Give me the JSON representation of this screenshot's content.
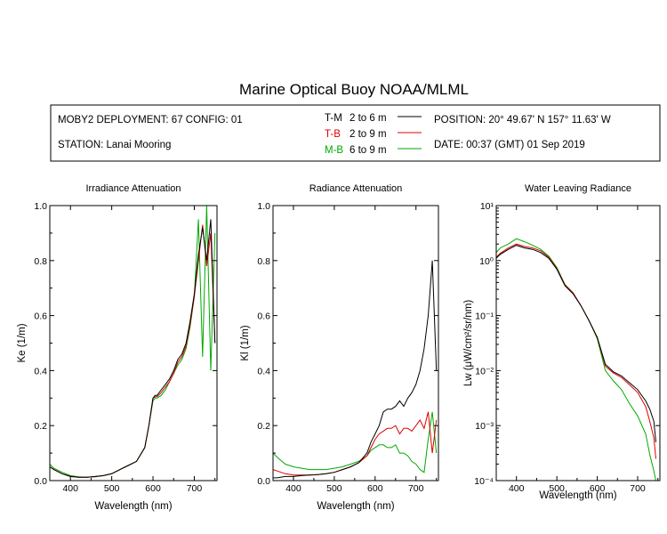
{
  "title": "Marine Optical Buoy NOAA/MLML",
  "info": {
    "deployment": "MOBY2 DEPLOYMENT: 67 CONFIG: 01",
    "station": "STATION: Lanai Mooring",
    "position": "POSITION: 20° 49.67' N   157° 11.63' W",
    "date": "DATE: 00:37 (GMT) 01 Sep 2019"
  },
  "legend": [
    {
      "code": "T-M",
      "range": "2 to 6  m",
      "color": "#000000"
    },
    {
      "code": "T-B",
      "range": "2 to 9  m",
      "color": "#dd0000"
    },
    {
      "code": "M-B",
      "range": "6 to 9  m",
      "color": "#00aa00"
    }
  ],
  "chart_data": [
    {
      "type": "line",
      "title": "Irradiance Attenuation",
      "xlabel": "Wavelength (nm)",
      "ylabel": "Ke  (1/m)",
      "xlim": [
        350,
        755
      ],
      "ylim": [
        0,
        1.0
      ],
      "xticks": [
        "400",
        "500",
        "600",
        "700"
      ],
      "yticks": [
        "0.0",
        "0.2",
        "0.4",
        "0.6",
        "0.8",
        "1.0"
      ],
      "x": [
        350,
        360,
        380,
        400,
        420,
        440,
        460,
        480,
        500,
        520,
        540,
        560,
        580,
        590,
        600,
        605,
        610,
        620,
        630,
        640,
        650,
        660,
        670,
        680,
        690,
        700,
        710,
        720,
        730,
        740,
        750
      ],
      "series": [
        {
          "name": "T-M",
          "color": "#000000",
          "values": [
            0.05,
            0.04,
            0.025,
            0.015,
            0.012,
            0.012,
            0.015,
            0.018,
            0.025,
            0.04,
            0.055,
            0.07,
            0.12,
            0.2,
            0.3,
            0.31,
            0.31,
            0.33,
            0.35,
            0.37,
            0.4,
            0.44,
            0.46,
            0.5,
            0.58,
            0.68,
            0.82,
            0.92,
            0.8,
            0.95,
            0.5
          ]
        },
        {
          "name": "T-B",
          "color": "#dd0000",
          "values": [
            0.05,
            0.04,
            0.025,
            0.015,
            0.012,
            0.012,
            0.015,
            0.018,
            0.025,
            0.04,
            0.055,
            0.07,
            0.12,
            0.2,
            0.3,
            0.305,
            0.305,
            0.32,
            0.34,
            0.36,
            0.39,
            0.43,
            0.45,
            0.49,
            0.57,
            0.67,
            0.8,
            0.93,
            0.78,
            0.9,
            0.5
          ]
        },
        {
          "name": "M-B",
          "color": "#00aa00",
          "values": [
            0.06,
            0.045,
            0.03,
            0.018,
            0.014,
            0.012,
            0.014,
            0.018,
            0.025,
            0.04,
            0.055,
            0.07,
            0.12,
            0.2,
            0.29,
            0.3,
            0.3,
            0.31,
            0.33,
            0.36,
            0.39,
            0.42,
            0.44,
            0.48,
            0.56,
            0.67,
            0.95,
            0.45,
            1.0,
            0.4,
            0.9
          ]
        }
      ]
    },
    {
      "type": "line",
      "title": "Radiance Attenuation",
      "xlabel": "Wavelength (nm)",
      "ylabel": "Kl  (1/m)",
      "xlim": [
        350,
        755
      ],
      "ylim": [
        0,
        1.0
      ],
      "xticks": [
        "400",
        "500",
        "600",
        "700"
      ],
      "yticks": [
        "0.0",
        "0.2",
        "0.4",
        "0.6",
        "0.8",
        "1.0"
      ],
      "x": [
        350,
        360,
        380,
        400,
        420,
        440,
        460,
        480,
        500,
        520,
        540,
        560,
        580,
        590,
        600,
        610,
        620,
        630,
        640,
        650,
        660,
        670,
        680,
        690,
        700,
        710,
        720,
        730,
        740,
        750
      ],
      "series": [
        {
          "name": "T-M",
          "color": "#000000",
          "values": [
            0.01,
            0.01,
            0.015,
            0.015,
            0.018,
            0.02,
            0.022,
            0.025,
            0.03,
            0.04,
            0.05,
            0.065,
            0.1,
            0.14,
            0.17,
            0.2,
            0.25,
            0.26,
            0.26,
            0.27,
            0.29,
            0.27,
            0.3,
            0.32,
            0.35,
            0.4,
            0.48,
            0.6,
            0.8,
            0.4
          ]
        },
        {
          "name": "T-B",
          "color": "#dd0000",
          "values": [
            0.04,
            0.035,
            0.025,
            0.02,
            0.02,
            0.02,
            0.022,
            0.025,
            0.03,
            0.04,
            0.05,
            0.065,
            0.09,
            0.12,
            0.15,
            0.17,
            0.18,
            0.19,
            0.19,
            0.2,
            0.17,
            0.19,
            0.19,
            0.18,
            0.2,
            0.22,
            0.19,
            0.25,
            0.1,
            0.22
          ]
        },
        {
          "name": "M-B",
          "color": "#00aa00",
          "values": [
            0.1,
            0.085,
            0.06,
            0.05,
            0.045,
            0.04,
            0.04,
            0.04,
            0.045,
            0.05,
            0.06,
            0.07,
            0.09,
            0.11,
            0.12,
            0.13,
            0.13,
            0.12,
            0.12,
            0.13,
            0.1,
            0.1,
            0.09,
            0.07,
            0.06,
            0.04,
            0.03,
            0.15,
            0.25,
            0.1
          ]
        }
      ]
    },
    {
      "type": "line",
      "title": "Water Leaving Radiance",
      "xlabel": "Wavelength (nm)",
      "ylabel": "Lw  (μW/cm²/sr/nm)",
      "xlim": [
        350,
        755
      ],
      "ylim": [
        0.0001,
        10
      ],
      "yscale": "log",
      "xticks": [
        "400",
        "500",
        "600",
        "700"
      ],
      "yticks": [
        "10¹",
        "10⁰",
        "10⁻¹",
        "10⁻²",
        "10⁻³",
        "10⁻⁴"
      ],
      "x": [
        350,
        360,
        380,
        400,
        420,
        440,
        460,
        480,
        500,
        520,
        540,
        560,
        580,
        600,
        620,
        640,
        660,
        680,
        700,
        720,
        730,
        740,
        745
      ],
      "series": [
        {
          "name": "T-M",
          "color": "#000000",
          "values": [
            1.1,
            1.3,
            1.6,
            1.9,
            1.7,
            1.6,
            1.4,
            1.1,
            0.7,
            0.35,
            0.25,
            0.15,
            0.08,
            0.04,
            0.013,
            0.0095,
            0.008,
            0.006,
            0.0045,
            0.0028,
            0.002,
            0.0012,
            0.0005
          ]
        },
        {
          "name": "T-B",
          "color": "#dd0000",
          "values": [
            1.15,
            1.35,
            1.7,
            2.0,
            1.8,
            1.7,
            1.5,
            1.15,
            0.72,
            0.36,
            0.26,
            0.15,
            0.08,
            0.04,
            0.012,
            0.009,
            0.0075,
            0.0055,
            0.004,
            0.0022,
            0.0012,
            0.0006,
            0.00025
          ]
        },
        {
          "name": "M-B",
          "color": "#00aa00",
          "values": [
            1.4,
            1.7,
            2.0,
            2.5,
            2.2,
            1.9,
            1.6,
            1.2,
            0.75,
            0.37,
            0.26,
            0.15,
            0.08,
            0.038,
            0.01,
            0.0065,
            0.0045,
            0.0025,
            0.0015,
            0.0007,
            0.0003,
            0.00015,
            0.0001
          ]
        }
      ]
    }
  ]
}
